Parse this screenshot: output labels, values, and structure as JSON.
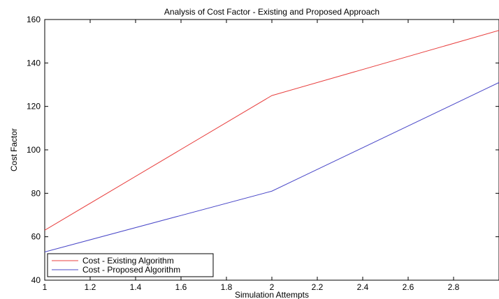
{
  "chart_data": {
    "type": "line",
    "title": "Analysis of Cost Factor - Existing and Proposed Approach",
    "xlabel": "Simulation Attempts",
    "ylabel": "Cost Factor",
    "xlim": [
      1,
      3
    ],
    "ylim": [
      40,
      160
    ],
    "x_ticks": [
      "1",
      "1.2",
      "1.4",
      "1.6",
      "1.8",
      "2",
      "2.2",
      "2.4",
      "2.6",
      "2.8"
    ],
    "y_ticks": [
      "40",
      "60",
      "80",
      "100",
      "120",
      "140",
      "160"
    ],
    "x": [
      1,
      2,
      3
    ],
    "series": [
      {
        "name": "Cost - Existing Algorithm",
        "values": [
          63,
          125,
          155
        ],
        "color": "#e8403f"
      },
      {
        "name": "Cost - Proposed Algorithm",
        "values": [
          53,
          81,
          131
        ],
        "color": "#4a48c8"
      }
    ],
    "legend_position": "bottom-left",
    "grid": false
  }
}
